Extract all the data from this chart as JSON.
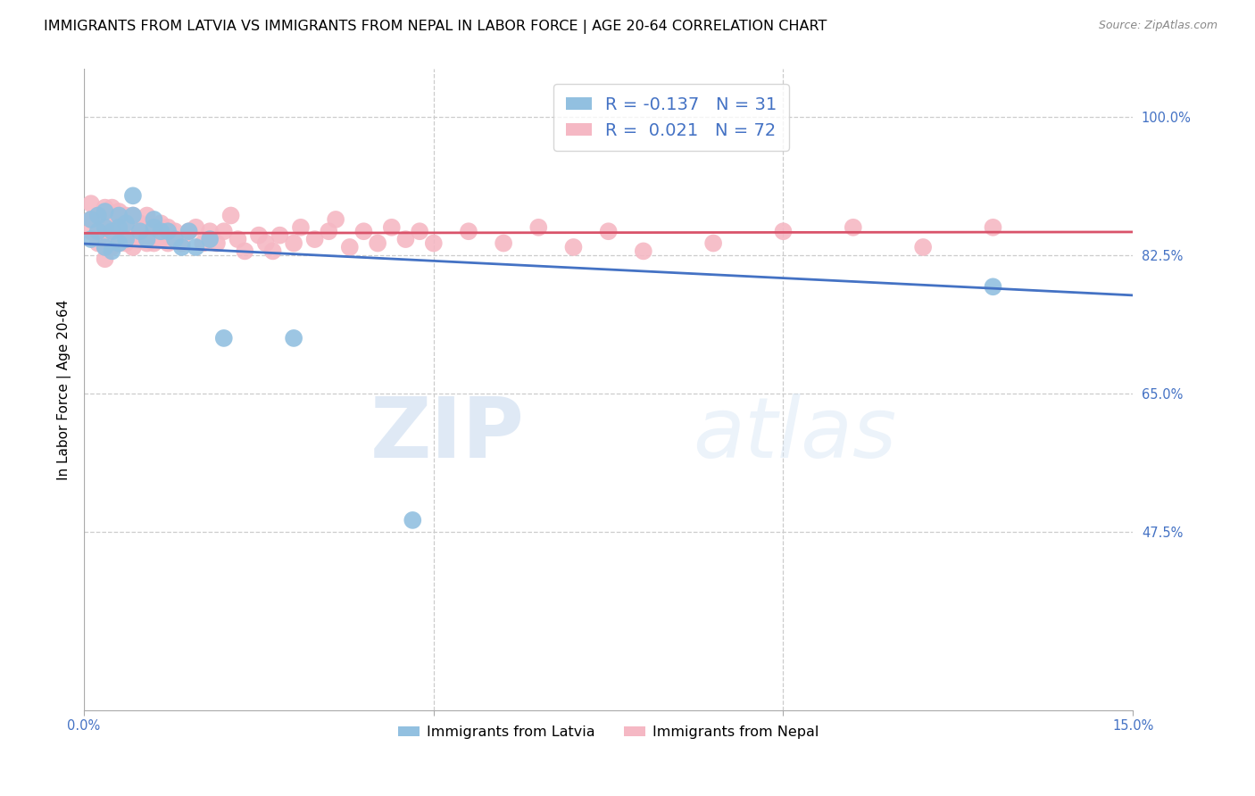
{
  "title": "IMMIGRANTS FROM LATVIA VS IMMIGRANTS FROM NEPAL IN LABOR FORCE | AGE 20-64 CORRELATION CHART",
  "source": "Source: ZipAtlas.com",
  "ylabel": "In Labor Force | Age 20-64",
  "ytick_values": [
    1.0,
    0.825,
    0.65,
    0.475
  ],
  "ytick_labels": [
    "100.0%",
    "82.5%",
    "65.0%",
    "47.5%"
  ],
  "xlim": [
    0.0,
    0.15
  ],
  "ylim": [
    0.25,
    1.06
  ],
  "blue_color": "#92C0E0",
  "pink_color": "#F5B8C4",
  "blue_line_color": "#4472C4",
  "pink_line_color": "#D9536A",
  "watermark_zip": "ZIP",
  "watermark_atlas": "atlas",
  "legend_label_1": "Immigrants from Latvia",
  "legend_label_2": "Immigrants from Nepal",
  "R_latvia": -0.137,
  "N_latvia": 31,
  "R_nepal": 0.021,
  "N_nepal": 72,
  "latvia_x": [
    0.001,
    0.001,
    0.002,
    0.002,
    0.003,
    0.003,
    0.003,
    0.004,
    0.004,
    0.005,
    0.005,
    0.005,
    0.006,
    0.006,
    0.007,
    0.007,
    0.008,
    0.009,
    0.01,
    0.01,
    0.011,
    0.012,
    0.013,
    0.014,
    0.015,
    0.016,
    0.018,
    0.02,
    0.03,
    0.047,
    0.13
  ],
  "latvia_y": [
    0.845,
    0.87,
    0.855,
    0.875,
    0.835,
    0.86,
    0.88,
    0.83,
    0.855,
    0.84,
    0.86,
    0.875,
    0.845,
    0.865,
    0.875,
    0.9,
    0.855,
    0.845,
    0.86,
    0.87,
    0.855,
    0.855,
    0.845,
    0.835,
    0.855,
    0.835,
    0.845,
    0.72,
    0.72,
    0.49,
    0.785
  ],
  "nepal_x": [
    0.001,
    0.001,
    0.001,
    0.002,
    0.002,
    0.002,
    0.003,
    0.003,
    0.003,
    0.003,
    0.004,
    0.004,
    0.004,
    0.004,
    0.005,
    0.005,
    0.005,
    0.006,
    0.006,
    0.006,
    0.007,
    0.007,
    0.007,
    0.008,
    0.008,
    0.009,
    0.009,
    0.009,
    0.01,
    0.01,
    0.011,
    0.011,
    0.012,
    0.012,
    0.013,
    0.014,
    0.015,
    0.016,
    0.017,
    0.018,
    0.019,
    0.02,
    0.021,
    0.022,
    0.023,
    0.025,
    0.026,
    0.027,
    0.028,
    0.03,
    0.031,
    0.033,
    0.035,
    0.036,
    0.038,
    0.04,
    0.042,
    0.044,
    0.046,
    0.048,
    0.05,
    0.055,
    0.06,
    0.065,
    0.07,
    0.075,
    0.08,
    0.09,
    0.1,
    0.11,
    0.12,
    0.13
  ],
  "nepal_y": [
    0.87,
    0.855,
    0.89,
    0.84,
    0.86,
    0.875,
    0.82,
    0.845,
    0.865,
    0.885,
    0.835,
    0.855,
    0.87,
    0.885,
    0.84,
    0.86,
    0.88,
    0.84,
    0.86,
    0.875,
    0.835,
    0.855,
    0.875,
    0.845,
    0.865,
    0.84,
    0.86,
    0.875,
    0.84,
    0.86,
    0.845,
    0.865,
    0.84,
    0.86,
    0.855,
    0.84,
    0.855,
    0.86,
    0.84,
    0.855,
    0.84,
    0.855,
    0.875,
    0.845,
    0.83,
    0.85,
    0.84,
    0.83,
    0.85,
    0.84,
    0.86,
    0.845,
    0.855,
    0.87,
    0.835,
    0.855,
    0.84,
    0.86,
    0.845,
    0.855,
    0.84,
    0.855,
    0.84,
    0.86,
    0.835,
    0.855,
    0.83,
    0.84,
    0.855,
    0.86,
    0.835,
    0.86
  ],
  "title_fontsize": 11.5,
  "axis_label_fontsize": 11,
  "tick_fontsize": 10.5
}
